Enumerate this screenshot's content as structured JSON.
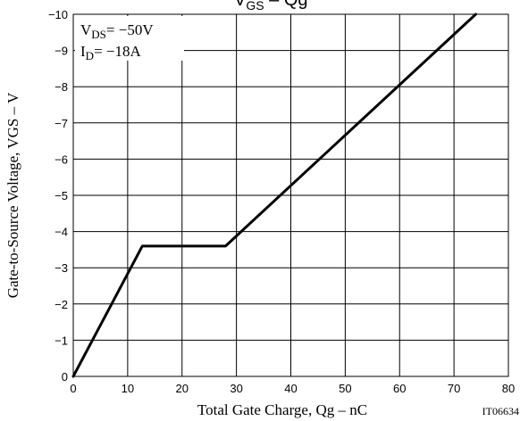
{
  "chart_data": {
    "type": "line",
    "title_main": "V",
    "title_sub": "GS",
    "title_rest": " – Qg",
    "xlabel": "Total Gate Charge,  Qg  –  nC",
    "ylabel": "Gate-to-Source Voltage,  VGS  –  V",
    "xlim": [
      0,
      80
    ],
    "ylim": [
      0,
      -10
    ],
    "x_ticks": [
      "0",
      "10",
      "20",
      "30",
      "40",
      "50",
      "60",
      "70",
      "80"
    ],
    "y_ticks": [
      "0",
      "−1",
      "−2",
      "−3",
      "−4",
      "−5",
      "−6",
      "−7",
      "−8",
      "−9",
      "−10"
    ],
    "grid": true,
    "conditions": {
      "vds_main": "V",
      "vds_sub": "DS",
      "vds_rest": "= −50V",
      "id_main": "I",
      "id_sub": "D",
      "id_rest": "= −18A"
    },
    "part_code": "IT06634",
    "series": [
      {
        "x": [
          0,
          12.7,
          28,
          74
        ],
        "y": [
          0,
          -3.6,
          -3.6,
          -10
        ]
      }
    ]
  }
}
